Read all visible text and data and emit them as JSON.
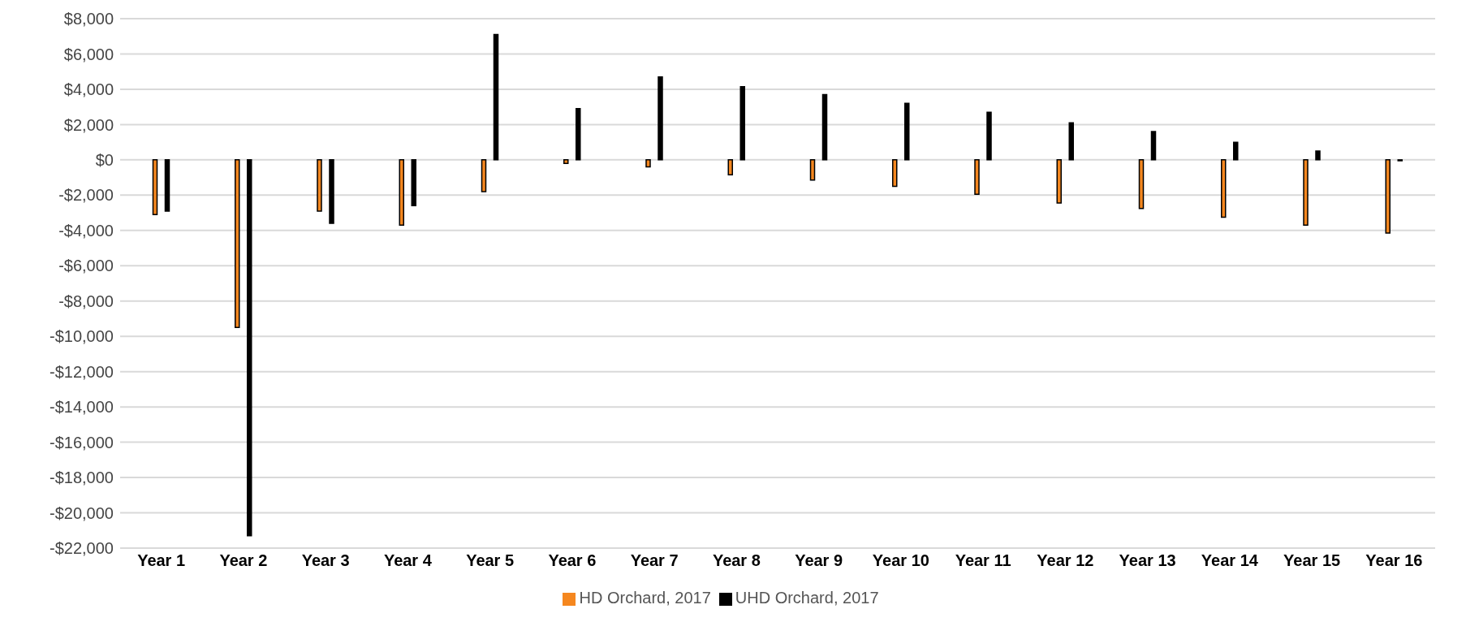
{
  "chart_data": {
    "type": "bar",
    "categories": [
      "Year 1",
      "Year 2",
      "Year 3",
      "Year 4",
      "Year 5",
      "Year 6",
      "Year 7",
      "Year 8",
      "Year 9",
      "Year 10",
      "Year 11",
      "Year 12",
      "Year 13",
      "Year 14",
      "Year 15",
      "Year 16"
    ],
    "series": [
      {
        "name": "HD Orchard, 2017",
        "color": "#f5871f",
        "values": [
          -3100,
          -9500,
          -2900,
          -3700,
          -1800,
          -200,
          -400,
          -850,
          -1150,
          -1500,
          -1950,
          -2450,
          -2750,
          -3250,
          -3700,
          -4150
        ]
      },
      {
        "name": "UHD Orchard, 2017",
        "color": "#000000",
        "values": [
          -2900,
          -21300,
          -3600,
          -2600,
          7100,
          2900,
          4700,
          4150,
          3700,
          3200,
          2700,
          2100,
          1600,
          1000,
          500,
          -50
        ]
      }
    ],
    "ylim": [
      -22000,
      8000
    ],
    "yticks": [
      {
        "value": -22000,
        "label": "-$22,000"
      },
      {
        "value": -20000,
        "label": "-$20,000"
      },
      {
        "value": -18000,
        "label": "-$18,000"
      },
      {
        "value": -16000,
        "label": "-$16,000"
      },
      {
        "value": -14000,
        "label": "-$14,000"
      },
      {
        "value": -12000,
        "label": "-$12,000"
      },
      {
        "value": -10000,
        "label": "-$10,000"
      },
      {
        "value": -8000,
        "label": "-$8,000"
      },
      {
        "value": -6000,
        "label": "-$6,000"
      },
      {
        "value": -4000,
        "label": "-$4,000"
      },
      {
        "value": -2000,
        "label": "-$2,000"
      },
      {
        "value": 0,
        "label": "$0"
      },
      {
        "value": 2000,
        "label": "$2,000"
      },
      {
        "value": 4000,
        "label": "$4,000"
      },
      {
        "value": 6000,
        "label": "$6,000"
      },
      {
        "value": 8000,
        "label": "$8,000"
      }
    ],
    "grid": "y",
    "legend": "bottom"
  }
}
